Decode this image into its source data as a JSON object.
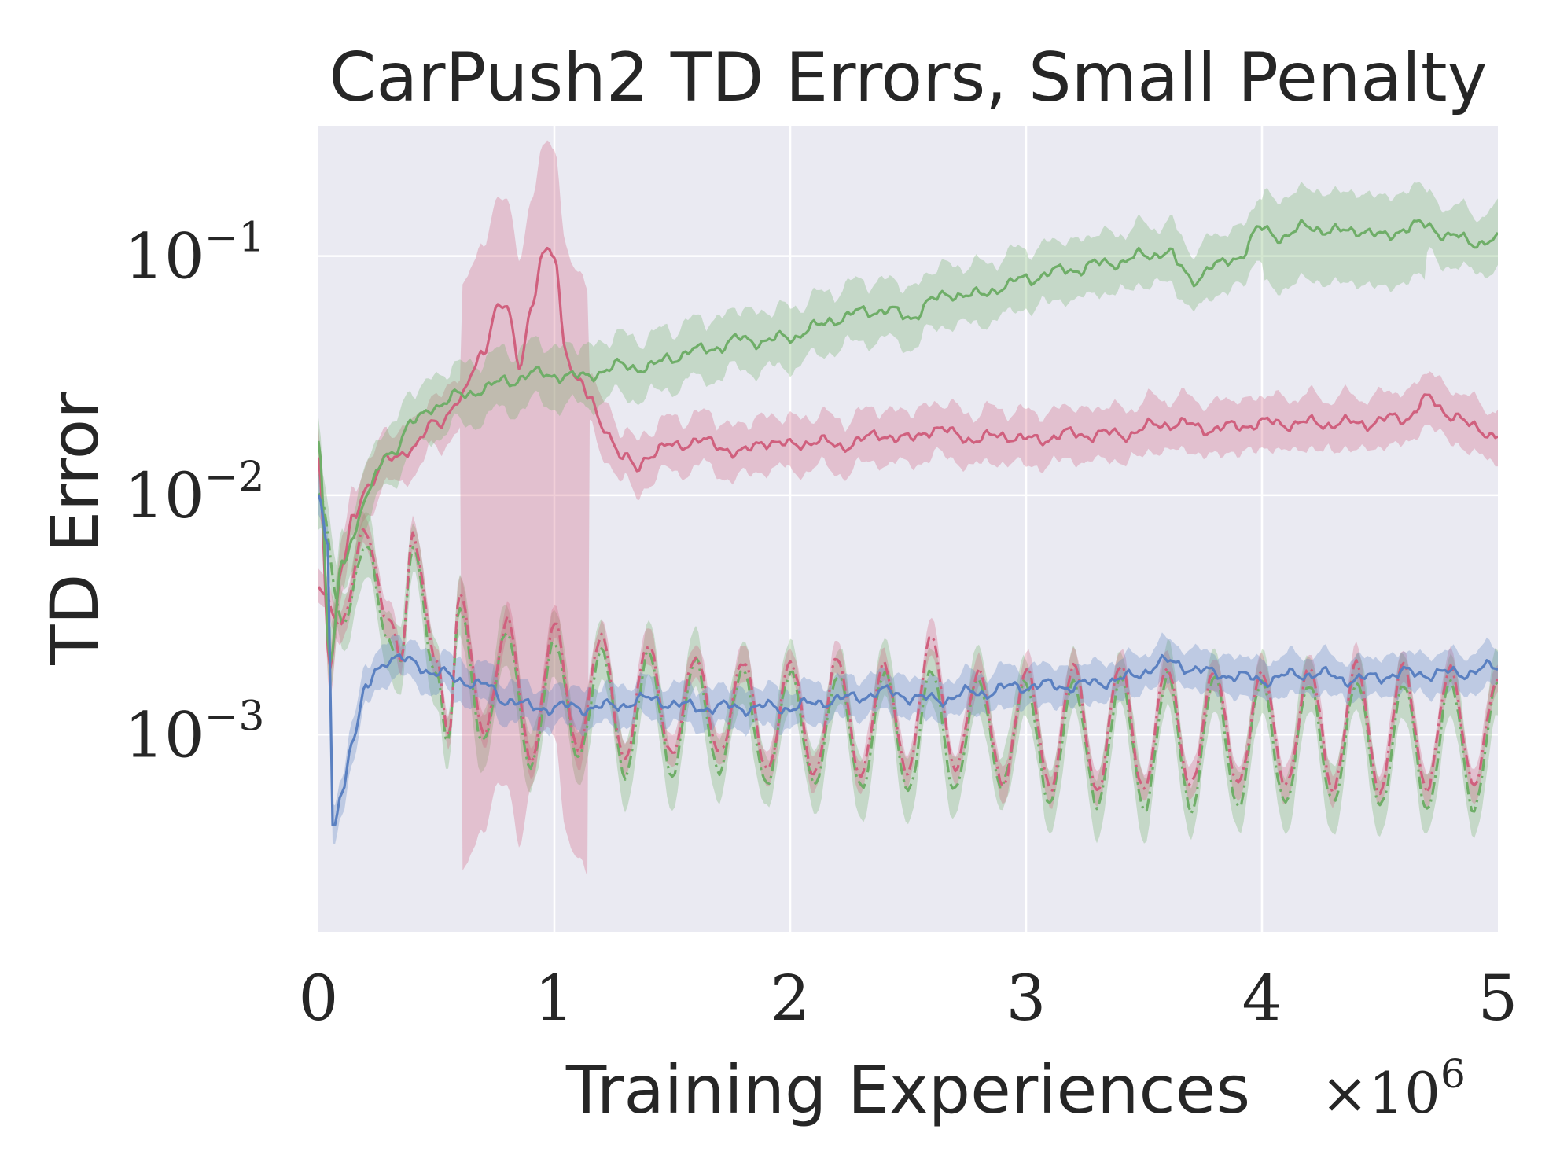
{
  "chart_data": {
    "type": "line",
    "title": "CarPush2 TD Errors, Small Penalty",
    "xlabel": "Training Experiences",
    "ylabel": "TD Error",
    "x_multiplier_label": "×10",
    "x_multiplier_exp": "6",
    "yscale": "log",
    "xlim": [
      0,
      5
    ],
    "ylim": [
      0.00015,
      0.35
    ],
    "xticks": [
      {
        "value": 0,
        "label": "0"
      },
      {
        "value": 1,
        "label": "1"
      },
      {
        "value": 2,
        "label": "2"
      },
      {
        "value": 3,
        "label": "3"
      },
      {
        "value": 4,
        "label": "4"
      },
      {
        "value": 5,
        "label": "5"
      }
    ],
    "yticks": [
      {
        "value": 0.1,
        "base": "10",
        "exp": "−1"
      },
      {
        "value": 0.01,
        "base": "10",
        "exp": "−2"
      },
      {
        "value": 0.001,
        "base": "10",
        "exp": "−3"
      }
    ],
    "grid": true,
    "colors": {
      "background": "#eaeaf2",
      "grid": "#ffffff",
      "green": "#6fae68",
      "pink": "#d0607e",
      "blue": "#5a80c1"
    },
    "series": [
      {
        "name": "green-solid",
        "color": "#6fae68",
        "style": "solid",
        "x": [
          0,
          0.05,
          0.1,
          0.15,
          0.2,
          0.3,
          0.4,
          0.5,
          0.6,
          0.7,
          0.8,
          0.9,
          1.0,
          1.1,
          1.2,
          1.3,
          1.4,
          1.5,
          1.6,
          1.7,
          1.8,
          1.9,
          2.0,
          2.1,
          2.2,
          2.3,
          2.4,
          2.5,
          2.6,
          2.7,
          2.8,
          2.9,
          3.0,
          3.1,
          3.2,
          3.3,
          3.4,
          3.5,
          3.6,
          3.65,
          3.7,
          3.8,
          3.9,
          4.0,
          4.1,
          4.2,
          4.3,
          4.4,
          4.5,
          4.6,
          4.7,
          4.8,
          4.9,
          5.0
        ],
        "y": [
          0.018,
          0.002,
          0.005,
          0.007,
          0.01,
          0.015,
          0.02,
          0.024,
          0.026,
          0.028,
          0.03,
          0.032,
          0.032,
          0.031,
          0.033,
          0.035,
          0.034,
          0.038,
          0.04,
          0.042,
          0.045,
          0.044,
          0.046,
          0.05,
          0.055,
          0.058,
          0.06,
          0.055,
          0.065,
          0.07,
          0.068,
          0.075,
          0.08,
          0.085,
          0.088,
          0.092,
          0.095,
          0.1,
          0.105,
          0.09,
          0.08,
          0.09,
          0.1,
          0.13,
          0.12,
          0.135,
          0.125,
          0.13,
          0.12,
          0.13,
          0.135,
          0.12,
          0.115,
          0.115
        ]
      },
      {
        "name": "pink-solid",
        "color": "#d0607e",
        "style": "solid",
        "x": [
          0,
          0.05,
          0.1,
          0.15,
          0.2,
          0.3,
          0.4,
          0.5,
          0.6,
          0.7,
          0.75,
          0.8,
          0.85,
          0.9,
          0.95,
          1.0,
          1.05,
          1.1,
          1.15,
          1.2,
          1.3,
          1.35,
          1.4,
          1.5,
          1.6,
          1.7,
          1.8,
          1.9,
          2.0,
          2.1,
          2.2,
          2.3,
          2.4,
          2.5,
          2.6,
          2.7,
          2.8,
          2.9,
          3.0,
          3.2,
          3.4,
          3.6,
          3.8,
          4.0,
          4.2,
          4.4,
          4.6,
          4.7,
          4.8,
          4.9,
          5.0
        ],
        "y": [
          0.014,
          0.002,
          0.005,
          0.008,
          0.011,
          0.014,
          0.016,
          0.02,
          0.025,
          0.04,
          0.06,
          0.06,
          0.035,
          0.06,
          0.1,
          0.1,
          0.04,
          0.03,
          0.025,
          0.02,
          0.014,
          0.013,
          0.015,
          0.016,
          0.017,
          0.016,
          0.015,
          0.017,
          0.016,
          0.017,
          0.016,
          0.017,
          0.018,
          0.017,
          0.019,
          0.018,
          0.017,
          0.018,
          0.017,
          0.018,
          0.018,
          0.02,
          0.019,
          0.02,
          0.02,
          0.02,
          0.021,
          0.025,
          0.022,
          0.019,
          0.018
        ]
      },
      {
        "name": "blue-solid",
        "color": "#5a80c1",
        "style": "solid",
        "x": [
          0,
          0.04,
          0.06,
          0.1,
          0.15,
          0.2,
          0.25,
          0.3,
          0.4,
          0.5,
          0.6,
          0.7,
          0.8,
          0.9,
          1.0,
          1.2,
          1.4,
          1.6,
          1.8,
          2.0,
          2.2,
          2.4,
          2.6,
          2.8,
          3.0,
          3.2,
          3.4,
          3.6,
          3.8,
          4.0,
          4.2,
          4.4,
          4.6,
          4.8,
          5.0
        ],
        "y": [
          0.01,
          0.006,
          0.0004,
          0.0006,
          0.001,
          0.0015,
          0.0019,
          0.0021,
          0.002,
          0.0018,
          0.0017,
          0.0016,
          0.0014,
          0.0013,
          0.0013,
          0.0013,
          0.0014,
          0.0013,
          0.0013,
          0.0013,
          0.0014,
          0.0015,
          0.0014,
          0.0015,
          0.0016,
          0.0016,
          0.0017,
          0.002,
          0.0018,
          0.0017,
          0.0018,
          0.0017,
          0.0018,
          0.0018,
          0.0019
        ]
      },
      {
        "name": "pink-dashdot",
        "color": "#d0607e",
        "style": "dashdot",
        "x": [
          0,
          0.1,
          0.2,
          0.3,
          0.35,
          0.4,
          0.5,
          0.55,
          0.6,
          0.7,
          0.8,
          0.9,
          1.0,
          1.1,
          1.2,
          1.3,
          1.4,
          1.5,
          1.6,
          1.7,
          1.8,
          1.9,
          2.0,
          2.1,
          2.2,
          2.3,
          2.4,
          2.5,
          2.6,
          2.7,
          2.8,
          2.9,
          3.0,
          3.1,
          3.2,
          3.3,
          3.4,
          3.5,
          3.6,
          3.7,
          3.8,
          3.9,
          4.0,
          4.1,
          4.2,
          4.3,
          4.4,
          4.5,
          4.6,
          4.7,
          4.8,
          4.9,
          5.0
        ],
        "y": [
          0.004,
          0.003,
          0.007,
          0.003,
          0.002,
          0.007,
          0.002,
          0.001,
          0.004,
          0.001,
          0.003,
          0.0008,
          0.0028,
          0.0009,
          0.0025,
          0.0008,
          0.0024,
          0.0008,
          0.0022,
          0.0008,
          0.0021,
          0.0007,
          0.002,
          0.0007,
          0.002,
          0.0007,
          0.0019,
          0.0007,
          0.0026,
          0.0007,
          0.0019,
          0.0006,
          0.0019,
          0.0006,
          0.0019,
          0.0006,
          0.0019,
          0.0006,
          0.0019,
          0.0006,
          0.0019,
          0.0006,
          0.0019,
          0.0006,
          0.0019,
          0.0006,
          0.0019,
          0.0006,
          0.0019,
          0.0006,
          0.0019,
          0.0006,
          0.0018
        ]
      },
      {
        "name": "green-dashdot",
        "color": "#6fae68",
        "style": "dashdot",
        "x": [
          0,
          0.1,
          0.2,
          0.3,
          0.35,
          0.4,
          0.5,
          0.55,
          0.6,
          0.7,
          0.8,
          0.9,
          1.0,
          1.1,
          1.2,
          1.3,
          1.4,
          1.5,
          1.6,
          1.7,
          1.8,
          1.9,
          2.0,
          2.1,
          2.2,
          2.3,
          2.4,
          2.5,
          2.6,
          2.7,
          2.8,
          2.9,
          3.0,
          3.1,
          3.2,
          3.3,
          3.4,
          3.5,
          3.6,
          3.7,
          3.8,
          3.9,
          4.0,
          4.1,
          4.2,
          4.3,
          4.4,
          4.5,
          4.6,
          4.7,
          4.8,
          4.9,
          5.0
        ],
        "y": [
          0.01,
          0.003,
          0.006,
          0.0025,
          0.002,
          0.006,
          0.0018,
          0.0009,
          0.0035,
          0.0009,
          0.0028,
          0.0007,
          0.0025,
          0.0008,
          0.0022,
          0.0007,
          0.0021,
          0.0007,
          0.002,
          0.0007,
          0.0019,
          0.0006,
          0.0019,
          0.0006,
          0.0018,
          0.0006,
          0.0018,
          0.0006,
          0.0018,
          0.0006,
          0.0017,
          0.0006,
          0.0017,
          0.0005,
          0.0017,
          0.0005,
          0.0017,
          0.0005,
          0.0017,
          0.0005,
          0.0017,
          0.0005,
          0.0017,
          0.0005,
          0.0017,
          0.0005,
          0.0017,
          0.0005,
          0.0016,
          0.0005,
          0.0016,
          0.0005,
          0.0016
        ]
      }
    ]
  }
}
